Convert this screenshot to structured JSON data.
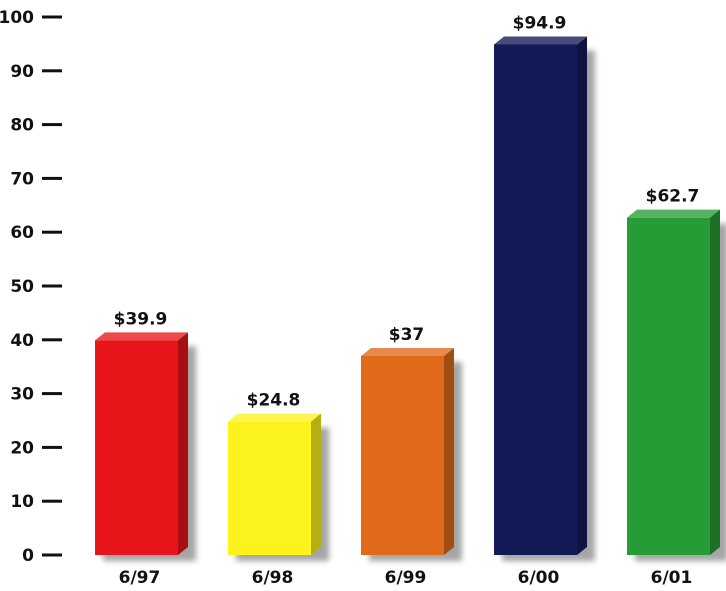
{
  "chart_data": {
    "type": "bar",
    "categories": [
      "6/97",
      "6/98",
      "6/99",
      "6/00",
      "6/01"
    ],
    "values": [
      39.9,
      24.8,
      37,
      94.9,
      62.7
    ],
    "data_labels": [
      "$39.9",
      "$24.8",
      "$37",
      "$94.9",
      "$62.7"
    ],
    "bar_colors": [
      "#e8151b",
      "#fcf21c",
      "#e06a1a",
      "#141a57",
      "#279b35"
    ],
    "yticks": [
      0,
      10,
      20,
      30,
      40,
      50,
      60,
      70,
      80,
      90,
      100
    ],
    "ylim": [
      0,
      100
    ],
    "grid": false,
    "title": "",
    "xlabel": "",
    "ylabel": ""
  }
}
